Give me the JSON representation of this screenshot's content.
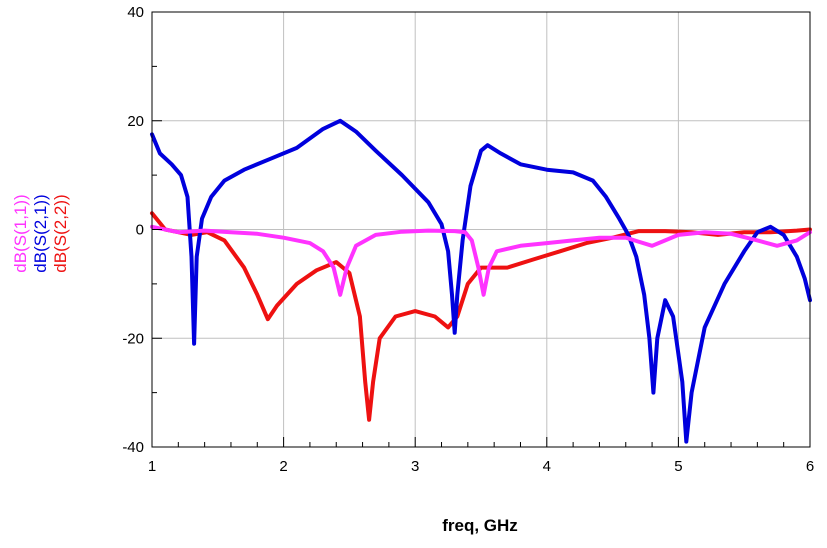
{
  "chart_data": {
    "type": "line",
    "xlabel": "freq, GHz",
    "xlim": [
      1,
      6
    ],
    "ylim": [
      -40,
      40
    ],
    "x_ticks": [
      "1",
      "2",
      "3",
      "4",
      "5",
      "6"
    ],
    "y_ticks": [
      "-40",
      "-20",
      "0",
      "20",
      "40"
    ],
    "grid": true,
    "legend": "left-vertical",
    "series": [
      {
        "name": "dB(S(1,1))",
        "color": "#ff33ff",
        "points": [
          [
            1.0,
            0.5
          ],
          [
            1.2,
            -0.5
          ],
          [
            1.4,
            -0.2
          ],
          [
            1.6,
            -0.5
          ],
          [
            1.8,
            -0.8
          ],
          [
            2.0,
            -1.5
          ],
          [
            2.2,
            -2.5
          ],
          [
            2.3,
            -4
          ],
          [
            2.38,
            -7
          ],
          [
            2.43,
            -12
          ],
          [
            2.48,
            -7
          ],
          [
            2.55,
            -3
          ],
          [
            2.7,
            -1
          ],
          [
            2.9,
            -0.4
          ],
          [
            3.1,
            -0.2
          ],
          [
            3.3,
            -0.3
          ],
          [
            3.38,
            -0.5
          ],
          [
            3.43,
            -2
          ],
          [
            3.48,
            -7
          ],
          [
            3.52,
            -12
          ],
          [
            3.56,
            -7
          ],
          [
            3.62,
            -4
          ],
          [
            3.8,
            -3
          ],
          [
            4.0,
            -2.5
          ],
          [
            4.2,
            -2
          ],
          [
            4.4,
            -1.5
          ],
          [
            4.6,
            -1.5
          ],
          [
            4.8,
            -3
          ],
          [
            4.9,
            -2
          ],
          [
            5.0,
            -1
          ],
          [
            5.2,
            -0.5
          ],
          [
            5.4,
            -0.8
          ],
          [
            5.6,
            -2
          ],
          [
            5.75,
            -3
          ],
          [
            5.9,
            -2
          ],
          [
            6.0,
            -0.5
          ]
        ]
      },
      {
        "name": "dB(S(2,1))",
        "color": "#0000dd",
        "points": [
          [
            1.0,
            17.5
          ],
          [
            1.06,
            14
          ],
          [
            1.15,
            12
          ],
          [
            1.22,
            10
          ],
          [
            1.27,
            6
          ],
          [
            1.3,
            -5
          ],
          [
            1.32,
            -21
          ],
          [
            1.34,
            -5
          ],
          [
            1.38,
            2
          ],
          [
            1.45,
            6
          ],
          [
            1.55,
            9
          ],
          [
            1.7,
            11
          ],
          [
            1.9,
            13
          ],
          [
            2.1,
            15
          ],
          [
            2.3,
            18.5
          ],
          [
            2.43,
            20
          ],
          [
            2.55,
            18
          ],
          [
            2.7,
            14.5
          ],
          [
            2.9,
            10
          ],
          [
            3.1,
            5
          ],
          [
            3.2,
            1
          ],
          [
            3.25,
            -4
          ],
          [
            3.28,
            -12
          ],
          [
            3.3,
            -19
          ],
          [
            3.32,
            -12
          ],
          [
            3.36,
            -2
          ],
          [
            3.42,
            8
          ],
          [
            3.5,
            14.5
          ],
          [
            3.55,
            15.5
          ],
          [
            3.65,
            14
          ],
          [
            3.8,
            12
          ],
          [
            4.0,
            11
          ],
          [
            4.2,
            10.5
          ],
          [
            4.35,
            9
          ],
          [
            4.45,
            6
          ],
          [
            4.55,
            2
          ],
          [
            4.62,
            -1
          ],
          [
            4.68,
            -5
          ],
          [
            4.74,
            -12
          ],
          [
            4.78,
            -20
          ],
          [
            4.81,
            -30
          ],
          [
            4.84,
            -20
          ],
          [
            4.9,
            -13
          ],
          [
            4.96,
            -16
          ],
          [
            5.03,
            -28
          ],
          [
            5.06,
            -39
          ],
          [
            5.1,
            -30
          ],
          [
            5.2,
            -18
          ],
          [
            5.35,
            -10
          ],
          [
            5.5,
            -4
          ],
          [
            5.6,
            -0.5
          ],
          [
            5.7,
            0.5
          ],
          [
            5.8,
            -1
          ],
          [
            5.9,
            -5
          ],
          [
            5.96,
            -9
          ],
          [
            6.0,
            -13
          ]
        ]
      },
      {
        "name": "dB(S(2,2))",
        "color": "#ee1111",
        "points": [
          [
            1.0,
            3
          ],
          [
            1.1,
            0
          ],
          [
            1.2,
            -0.5
          ],
          [
            1.3,
            -1
          ],
          [
            1.42,
            -0.5
          ],
          [
            1.55,
            -2
          ],
          [
            1.7,
            -7
          ],
          [
            1.8,
            -12
          ],
          [
            1.88,
            -16.5
          ],
          [
            1.95,
            -14
          ],
          [
            2.1,
            -10
          ],
          [
            2.25,
            -7.5
          ],
          [
            2.4,
            -6
          ],
          [
            2.5,
            -8
          ],
          [
            2.58,
            -16
          ],
          [
            2.62,
            -28
          ],
          [
            2.65,
            -35
          ],
          [
            2.68,
            -28
          ],
          [
            2.73,
            -20
          ],
          [
            2.85,
            -16
          ],
          [
            3.0,
            -15
          ],
          [
            3.15,
            -16
          ],
          [
            3.25,
            -18
          ],
          [
            3.32,
            -16
          ],
          [
            3.4,
            -10
          ],
          [
            3.5,
            -7
          ],
          [
            3.7,
            -7
          ],
          [
            3.9,
            -5.5
          ],
          [
            4.1,
            -4
          ],
          [
            4.3,
            -2.5
          ],
          [
            4.5,
            -1.5
          ],
          [
            4.7,
            -0.3
          ],
          [
            4.9,
            -0.3
          ],
          [
            5.1,
            -0.5
          ],
          [
            5.3,
            -1
          ],
          [
            5.5,
            -0.5
          ],
          [
            5.7,
            -0.5
          ],
          [
            5.9,
            -0.2
          ],
          [
            6.0,
            0
          ]
        ]
      }
    ]
  }
}
